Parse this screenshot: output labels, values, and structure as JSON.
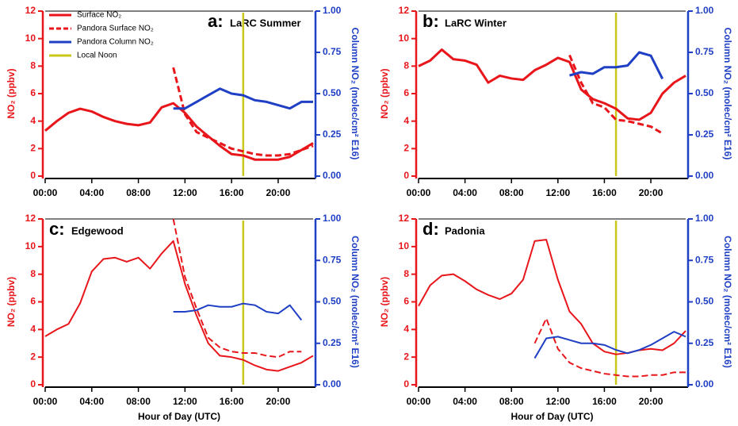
{
  "chart_data": [
    {
      "type": "line",
      "label": "a:",
      "title": "LaRC Summer",
      "ylabel": "NO₂ (ppbv)",
      "y2label": "Column NO₂ (molec/cm² E16)",
      "legend": "upper left",
      "x": [
        0,
        1,
        2,
        3,
        4,
        5,
        6,
        7,
        8,
        9,
        10,
        11,
        12,
        13,
        14,
        15,
        16,
        17,
        18,
        19,
        20,
        21,
        22,
        23
      ],
      "xlim": [
        0,
        23
      ],
      "xticks": [
        {
          "value": 0,
          "label": "00:00"
        },
        {
          "value": 4,
          "label": "04:00"
        },
        {
          "value": 8,
          "label": "08:00"
        },
        {
          "value": 12,
          "label": "12:00"
        },
        {
          "value": 16,
          "label": "16:00"
        },
        {
          "value": 20,
          "label": "20:00"
        }
      ],
      "ylim": [
        0,
        12
      ],
      "yticks": [
        0,
        2,
        4,
        6,
        8,
        10,
        12
      ],
      "y2lim": [
        0,
        1
      ],
      "y2ticks": [
        {
          "value": 0,
          "label": "0.00"
        },
        {
          "value": 0.25,
          "label": "0.25"
        },
        {
          "value": 0.5,
          "label": "0.50"
        },
        {
          "value": 0.75,
          "label": "0.75"
        },
        {
          "value": 1,
          "label": "1.00"
        }
      ],
      "series": [
        {
          "name": "Surface NO₂",
          "color": "#e8161b",
          "values": [
            3.3,
            4.0,
            4.6,
            4.9,
            4.7,
            4.3,
            4.0,
            3.8,
            3.7,
            3.9,
            5.0,
            5.3,
            4.6,
            3.6,
            2.9,
            2.2,
            1.6,
            1.5,
            1.2,
            1.2,
            1.2,
            1.4,
            1.9,
            2.4
          ]
        },
        {
          "name": "Pandora Surface NO₂",
          "color": "#e8161b",
          "dash": true,
          "values": [
            null,
            null,
            null,
            null,
            null,
            null,
            null,
            null,
            null,
            null,
            null,
            7.9,
            4.5,
            3.2,
            2.8,
            2.4,
            2.0,
            1.8,
            1.6,
            1.5,
            1.5,
            1.6,
            1.9,
            2.2
          ]
        },
        {
          "name": "Pandora Column NO₂",
          "color": "#1f3fc4",
          "axis": "y2",
          "values": [
            null,
            null,
            null,
            null,
            null,
            null,
            null,
            null,
            null,
            null,
            null,
            0.41,
            0.41,
            0.45,
            0.49,
            0.53,
            0.5,
            0.49,
            0.46,
            0.45,
            0.43,
            0.41,
            0.45,
            0.45
          ]
        }
      ],
      "local_noon": {
        "name": "Local Noon",
        "color": "#c9c81a",
        "x": 17
      }
    },
    {
      "type": "line",
      "label": "b:",
      "title": "LaRC Winter",
      "ylabel": "NO₂ (ppbv)",
      "y2label": "Column NO₂ (molec/cm² E16)",
      "x": [
        0,
        1,
        2,
        3,
        4,
        5,
        6,
        7,
        8,
        9,
        10,
        11,
        12,
        13,
        14,
        15,
        16,
        17,
        18,
        19,
        20,
        21,
        22,
        23
      ],
      "xlim": [
        0,
        23
      ],
      "xticks": [
        {
          "value": 0,
          "label": "00:00"
        },
        {
          "value": 4,
          "label": "04:00"
        },
        {
          "value": 8,
          "label": "08:00"
        },
        {
          "value": 12,
          "label": "12:00"
        },
        {
          "value": 16,
          "label": "16:00"
        },
        {
          "value": 20,
          "label": "20:00"
        }
      ],
      "ylim": [
        0,
        12
      ],
      "yticks": [
        0,
        2,
        4,
        6,
        8,
        10,
        12
      ],
      "y2lim": [
        0,
        1
      ],
      "y2ticks": [
        {
          "value": 0,
          "label": "0.00"
        },
        {
          "value": 0.25,
          "label": "0.25"
        },
        {
          "value": 0.5,
          "label": "0.50"
        },
        {
          "value": 0.75,
          "label": "0.75"
        },
        {
          "value": 1,
          "label": "1.00"
        }
      ],
      "series": [
        {
          "color": "#e8161b",
          "values": [
            8.0,
            8.4,
            9.2,
            8.5,
            8.4,
            8.1,
            6.8,
            7.3,
            7.1,
            7.0,
            7.7,
            8.1,
            8.6,
            8.3,
            6.3,
            5.6,
            5.3,
            4.9,
            4.2,
            4.1,
            4.6,
            6.0,
            6.8,
            7.3
          ]
        },
        {
          "color": "#e8161b",
          "dash": true,
          "values": [
            null,
            null,
            null,
            null,
            null,
            null,
            null,
            null,
            null,
            null,
            null,
            null,
            null,
            8.8,
            6.8,
            5.3,
            5.0,
            4.1,
            4.0,
            3.8,
            3.6,
            3.1,
            null,
            null
          ]
        },
        {
          "color": "#1f3fc4",
          "axis": "y2",
          "values": [
            null,
            null,
            null,
            null,
            null,
            null,
            null,
            null,
            null,
            null,
            null,
            null,
            null,
            0.61,
            0.63,
            0.62,
            0.66,
            0.66,
            0.67,
            0.75,
            0.73,
            0.59,
            null,
            null
          ]
        }
      ],
      "local_noon": {
        "color": "#c9c81a",
        "x": 17
      }
    },
    {
      "type": "line",
      "label": "c:",
      "title": "Edgewood",
      "ylabel": "NO₂ (ppbv)",
      "y2label": "Column NO₂ (molec/cm² E16)",
      "xlabel": "Hour of Day (UTC)",
      "x": [
        0,
        1,
        2,
        3,
        4,
        5,
        6,
        7,
        8,
        9,
        10,
        11,
        12,
        13,
        14,
        15,
        16,
        17,
        18,
        19,
        20,
        21,
        22,
        23
      ],
      "xlim": [
        0,
        23
      ],
      "xticks": [
        {
          "value": 0,
          "label": "00:00"
        },
        {
          "value": 4,
          "label": "04:00"
        },
        {
          "value": 8,
          "label": "08:00"
        },
        {
          "value": 12,
          "label": "12:00"
        },
        {
          "value": 16,
          "label": "16:00"
        },
        {
          "value": 20,
          "label": "20:00"
        }
      ],
      "ylim": [
        0,
        12
      ],
      "yticks": [
        0,
        2,
        4,
        6,
        8,
        10,
        12
      ],
      "y2lim": [
        0,
        1
      ],
      "y2ticks": [
        {
          "value": 0,
          "label": "0.00"
        },
        {
          "value": 0.25,
          "label": "0.25"
        },
        {
          "value": 0.5,
          "label": "0.50"
        },
        {
          "value": 0.75,
          "label": "0.75"
        },
        {
          "value": 1,
          "label": "1.00"
        }
      ],
      "series": [
        {
          "color": "#e8161b",
          "values": [
            3.5,
            4.0,
            4.4,
            5.9,
            8.2,
            9.1,
            9.2,
            8.9,
            9.2,
            8.4,
            9.5,
            10.4,
            7.3,
            5.0,
            3.0,
            2.1,
            2.0,
            1.8,
            1.4,
            1.1,
            1.0,
            1.3,
            1.6,
            2.1
          ]
        },
        {
          "color": "#e8161b",
          "dash": true,
          "values": [
            null,
            null,
            null,
            null,
            null,
            null,
            null,
            null,
            null,
            null,
            null,
            12.0,
            7.8,
            5.5,
            3.4,
            2.7,
            2.4,
            2.3,
            2.3,
            2.1,
            2.0,
            2.4,
            2.4,
            null
          ]
        },
        {
          "color": "#1f3fc4",
          "axis": "y2",
          "values": [
            null,
            null,
            null,
            null,
            null,
            null,
            null,
            null,
            null,
            null,
            null,
            0.44,
            0.44,
            0.45,
            0.48,
            0.47,
            0.47,
            0.49,
            0.48,
            0.44,
            0.43,
            0.48,
            0.39,
            null
          ]
        }
      ],
      "local_noon": {
        "color": "#c9c81a",
        "x": 17
      }
    },
    {
      "type": "line",
      "label": "d:",
      "title": "Padonia",
      "ylabel": "NO₂ (ppbv)",
      "y2label": "Column NO₂ (molec/cm² E16)",
      "xlabel": "Hour of Day (UTC)",
      "x": [
        0,
        1,
        2,
        3,
        4,
        5,
        6,
        7,
        8,
        9,
        10,
        11,
        12,
        13,
        14,
        15,
        16,
        17,
        18,
        19,
        20,
        21,
        22,
        23
      ],
      "xlim": [
        0,
        23
      ],
      "xticks": [
        {
          "value": 0,
          "label": "00:00"
        },
        {
          "value": 4,
          "label": "04:00"
        },
        {
          "value": 8,
          "label": "08:00"
        },
        {
          "value": 12,
          "label": "12:00"
        },
        {
          "value": 16,
          "label": "16:00"
        },
        {
          "value": 20,
          "label": "20:00"
        }
      ],
      "ylim": [
        0,
        12
      ],
      "yticks": [
        0,
        2,
        4,
        6,
        8,
        10,
        12
      ],
      "y2lim": [
        0,
        1
      ],
      "y2ticks": [
        {
          "value": 0,
          "label": "0.00"
        },
        {
          "value": 0.25,
          "label": "0.25"
        },
        {
          "value": 0.5,
          "label": "0.50"
        },
        {
          "value": 0.75,
          "label": "0.75"
        },
        {
          "value": 1,
          "label": "1.00"
        }
      ],
      "series": [
        {
          "color": "#e8161b",
          "values": [
            5.7,
            7.2,
            7.9,
            8.0,
            7.5,
            6.9,
            6.5,
            6.2,
            6.6,
            7.6,
            10.4,
            10.5,
            7.6,
            5.3,
            4.4,
            3.0,
            2.4,
            2.2,
            2.3,
            2.5,
            2.6,
            2.5,
            3.0,
            3.9
          ]
        },
        {
          "color": "#e8161b",
          "dash": true,
          "values": [
            null,
            null,
            null,
            null,
            null,
            null,
            null,
            null,
            null,
            null,
            3.0,
            4.8,
            2.6,
            1.6,
            1.2,
            1.0,
            0.8,
            0.7,
            0.6,
            0.6,
            0.7,
            0.7,
            0.9,
            0.9
          ]
        },
        {
          "color": "#1f3fc4",
          "axis": "y2",
          "values": [
            null,
            null,
            null,
            null,
            null,
            null,
            null,
            null,
            null,
            null,
            0.16,
            0.28,
            0.29,
            0.27,
            0.25,
            0.25,
            0.24,
            0.21,
            0.19,
            0.21,
            0.24,
            0.28,
            0.32,
            0.29
          ]
        }
      ],
      "local_noon": {
        "color": "#c9c81a",
        "x": 17
      }
    }
  ]
}
